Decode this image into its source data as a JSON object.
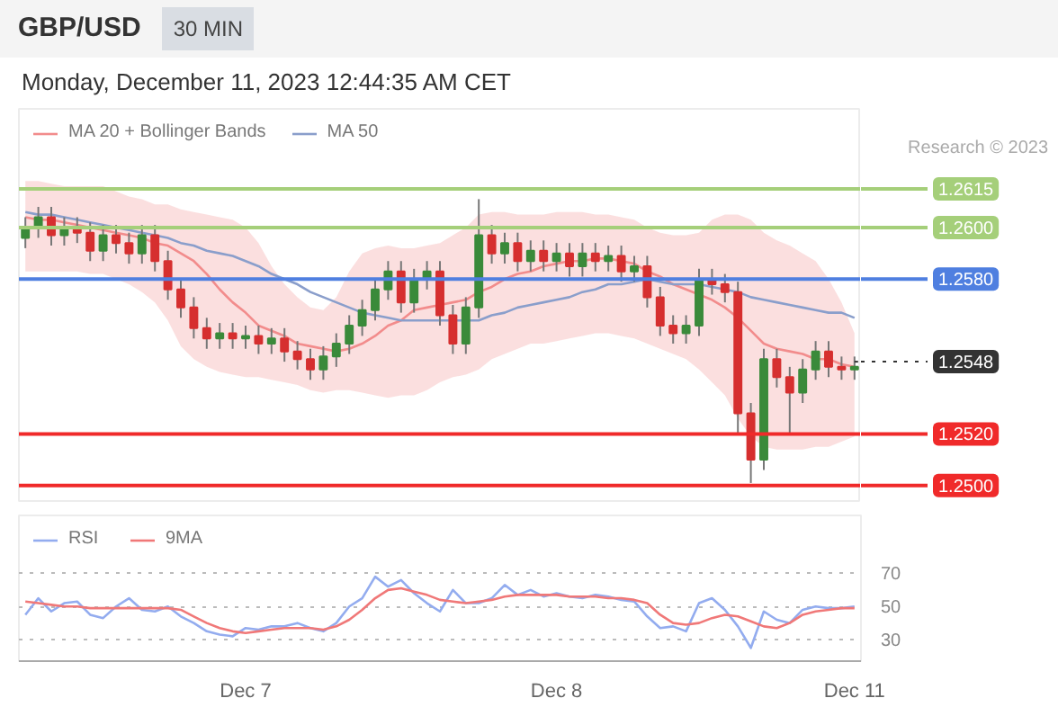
{
  "chart_data": [
    {
      "type": "candlestick",
      "title": "GBP/USD",
      "subtitle": "30 MIN",
      "annotations": [
        "Monday, December 11, 2023 12:44:35 AM CET",
        "Research © 2023"
      ],
      "categories": [
        null,
        null,
        null,
        null,
        null,
        null,
        null,
        null,
        null,
        null,
        null,
        null,
        null,
        null,
        null,
        null,
        null,
        null,
        null,
        null,
        null,
        null,
        null,
        null,
        null,
        null,
        null,
        null,
        null,
        null,
        null,
        null,
        null,
        null,
        null,
        null,
        null,
        null,
        null,
        null,
        null,
        null,
        null,
        null,
        null,
        null,
        null,
        null,
        null,
        null,
        null,
        null,
        null,
        null,
        null,
        null,
        null,
        null,
        null,
        null,
        null,
        null,
        null,
        null,
        null
      ],
      "ohlc": [
        [
          1.2596,
          1.2604,
          1.2592,
          1.26
        ],
        [
          1.26,
          1.2608,
          1.2596,
          1.2604
        ],
        [
          1.2604,
          1.2608,
          1.2593,
          1.2597
        ],
        [
          1.2597,
          1.2604,
          1.2593,
          1.26
        ],
        [
          1.26,
          1.2604,
          1.2594,
          1.2598
        ],
        [
          1.2598,
          1.2602,
          1.2587,
          1.2591
        ],
        [
          1.2591,
          1.2601,
          1.2587,
          1.2597
        ],
        [
          1.2597,
          1.2601,
          1.259,
          1.2594
        ],
        [
          1.2594,
          1.2598,
          1.2586,
          1.259
        ],
        [
          1.259,
          1.2601,
          1.2586,
          1.2597
        ],
        [
          1.2597,
          1.2601,
          1.2583,
          1.2587
        ],
        [
          1.2587,
          1.2591,
          1.2572,
          1.2576
        ],
        [
          1.2576,
          1.258,
          1.2565,
          1.2569
        ],
        [
          1.2569,
          1.2573,
          1.2557,
          1.2561
        ],
        [
          1.2561,
          1.2565,
          1.2553,
          1.2557
        ],
        [
          1.2557,
          1.2563,
          1.2553,
          1.2559
        ],
        [
          1.2559,
          1.2563,
          1.2553,
          1.2557
        ],
        [
          1.2557,
          1.2562,
          1.2553,
          1.2558
        ],
        [
          1.2558,
          1.2562,
          1.2551,
          1.2555
        ],
        [
          1.2555,
          1.2561,
          1.2551,
          1.2557
        ],
        [
          1.2557,
          1.2561,
          1.2548,
          1.2552
        ],
        [
          1.2552,
          1.2556,
          1.2545,
          1.2549
        ],
        [
          1.2549,
          1.2553,
          1.2541,
          1.2545
        ],
        [
          1.2545,
          1.2554,
          1.2541,
          1.255
        ],
        [
          1.255,
          1.2559,
          1.2546,
          1.2555
        ],
        [
          1.2555,
          1.2566,
          1.2551,
          1.2562
        ],
        [
          1.2562,
          1.2572,
          1.2558,
          1.2568
        ],
        [
          1.2568,
          1.258,
          1.2564,
          1.2576
        ],
        [
          1.2576,
          1.2587,
          1.2572,
          1.2583
        ],
        [
          1.2583,
          1.2587,
          1.2567,
          1.2571
        ],
        [
          1.2571,
          1.2584,
          1.2567,
          1.258
        ],
        [
          1.258,
          1.2587,
          1.2576,
          1.2583
        ],
        [
          1.2583,
          1.2587,
          1.2562,
          1.2566
        ],
        [
          1.2566,
          1.257,
          1.2551,
          1.2555
        ],
        [
          1.2555,
          1.2573,
          1.2551,
          1.2569
        ],
        [
          1.2569,
          1.2611,
          1.2565,
          1.2597
        ],
        [
          1.2597,
          1.2601,
          1.2586,
          1.259
        ],
        [
          1.259,
          1.2598,
          1.2586,
          1.2594
        ],
        [
          1.2594,
          1.2598,
          1.2583,
          1.2587
        ],
        [
          1.2587,
          1.2595,
          1.2583,
          1.2591
        ],
        [
          1.2591,
          1.2595,
          1.2583,
          1.2587
        ],
        [
          1.2587,
          1.2594,
          1.2583,
          1.259
        ],
        [
          1.259,
          1.2594,
          1.2581,
          1.2585
        ],
        [
          1.2585,
          1.2594,
          1.2581,
          1.259
        ],
        [
          1.259,
          1.2594,
          1.2583,
          1.2587
        ],
        [
          1.2587,
          1.2593,
          1.2583,
          1.2589
        ],
        [
          1.2589,
          1.2593,
          1.2579,
          1.2583
        ],
        [
          1.2583,
          1.2589,
          1.2579,
          1.2585
        ],
        [
          1.2585,
          1.2589,
          1.2569,
          1.2573
        ],
        [
          1.2573,
          1.2577,
          1.2558,
          1.2562
        ],
        [
          1.2562,
          1.2566,
          1.2555,
          1.2559
        ],
        [
          1.2559,
          1.2566,
          1.2555,
          1.2562
        ],
        [
          1.2562,
          1.2584,
          1.2558,
          1.258
        ],
        [
          1.258,
          1.2584,
          1.2574,
          1.2578
        ],
        [
          1.2578,
          1.2582,
          1.2571,
          1.2575
        ],
        [
          1.2575,
          1.2579,
          1.252,
          1.2528
        ],
        [
          1.2528,
          1.2532,
          1.2501,
          1.251
        ],
        [
          1.251,
          1.2553,
          1.2506,
          1.2549
        ],
        [
          1.2549,
          1.2553,
          1.2538,
          1.2542
        ],
        [
          1.2542,
          1.2546,
          1.252,
          1.2536
        ],
        [
          1.2536,
          1.2549,
          1.2532,
          1.2545
        ],
        [
          1.2545,
          1.2556,
          1.2541,
          1.2552
        ],
        [
          1.2552,
          1.2556,
          1.2542,
          1.2546
        ],
        [
          1.2546,
          1.255,
          1.2541,
          1.2545
        ],
        [
          1.2545,
          1.255,
          1.2541,
          1.2546
        ]
      ],
      "colors": [
        "#3a8a3a",
        "#3a8a3a",
        "#d62f2f",
        "#3a8a3a",
        "#d62f2f",
        "#d62f2f",
        "#3a8a3a",
        "#d62f2f",
        "#d62f2f",
        "#3a8a3a",
        "#d62f2f",
        "#d62f2f",
        "#d62f2f",
        "#d62f2f",
        "#d62f2f",
        "#3a8a3a",
        "#d62f2f",
        "#3a8a3a",
        "#d62f2f",
        "#3a8a3a",
        "#d62f2f",
        "#d62f2f",
        "#d62f2f",
        "#3a8a3a",
        "#3a8a3a",
        "#3a8a3a",
        "#3a8a3a",
        "#3a8a3a",
        "#3a8a3a",
        "#d62f2f",
        "#3a8a3a",
        "#3a8a3a",
        "#d62f2f",
        "#d62f2f",
        "#3a8a3a",
        "#3a8a3a",
        "#d62f2f",
        "#3a8a3a",
        "#d62f2f",
        "#3a8a3a",
        "#d62f2f",
        "#3a8a3a",
        "#d62f2f",
        "#3a8a3a",
        "#d62f2f",
        "#3a8a3a",
        "#d62f2f",
        "#3a8a3a",
        "#d62f2f",
        "#d62f2f",
        "#d62f2f",
        "#3a8a3a",
        "#3a8a3a",
        "#d62f2f",
        "#d62f2f",
        "#d62f2f",
        "#d62f2f",
        "#3a8a3a",
        "#d62f2f",
        "#d62f2f",
        "#3a8a3a",
        "#3a8a3a",
        "#d62f2f",
        "#d62f2f",
        "#3a8a3a"
      ],
      "series": [
        {
          "name": "MA 20 + Bollinger Bands",
          "type": "line",
          "color": "#f28c8c",
          "values": [
            1.2604,
            1.2603,
            1.2603,
            1.2602,
            1.2601,
            1.26,
            1.2599,
            1.2598,
            1.2597,
            1.2596,
            1.2594,
            1.2593,
            1.259,
            1.2587,
            1.2582,
            1.2576,
            1.2571,
            1.2567,
            1.2562,
            1.256,
            1.2558,
            1.2555,
            1.2554,
            1.2553,
            1.2552,
            1.2553,
            1.2555,
            1.2558,
            1.2562,
            1.2564,
            1.2568,
            1.2569,
            1.257,
            1.2571,
            1.2572,
            1.2575,
            1.2577,
            1.258,
            1.2582,
            1.2583,
            1.2585,
            1.2586,
            1.2587,
            1.2587,
            1.2588,
            1.2588,
            1.2587,
            1.2586,
            1.2583,
            1.2581,
            1.2578,
            1.2576,
            1.2574,
            1.2572,
            1.2569,
            1.2565,
            1.256,
            1.2555,
            1.2553,
            1.2552,
            1.2551,
            1.2549,
            1.2549,
            1.2547,
            1.2546
          ],
          "upper": [
            1.2618,
            1.2618,
            1.2617,
            1.2616,
            1.2616,
            1.2616,
            1.2616,
            1.2614,
            1.2612,
            1.2611,
            1.2609,
            1.2609,
            1.2607,
            1.2606,
            1.2605,
            1.2604,
            1.2603,
            1.26,
            1.2594,
            1.2585,
            1.2578,
            1.2573,
            1.2569,
            1.2568,
            1.2573,
            1.2583,
            1.259,
            1.2592,
            1.2593,
            1.2592,
            1.2592,
            1.2593,
            1.2594,
            1.2597,
            1.26,
            1.2605,
            1.2606,
            1.2606,
            1.2605,
            1.2605,
            1.2605,
            1.2606,
            1.2606,
            1.2606,
            1.2605,
            1.2605,
            1.2604,
            1.2603,
            1.26,
            1.2598,
            1.2597,
            1.2597,
            1.2598,
            1.2603,
            1.2605,
            1.2605,
            1.2603,
            1.2598,
            1.2595,
            1.2593,
            1.259,
            1.2587,
            1.258,
            1.2571,
            1.2559
          ],
          "lower": [
            1.2583,
            1.2583,
            1.2583,
            1.2583,
            1.2583,
            1.2582,
            1.2582,
            1.258,
            1.2578,
            1.2575,
            1.2571,
            1.2564,
            1.2554,
            1.2549,
            1.2546,
            1.2544,
            1.2543,
            1.2542,
            1.2542,
            1.2541,
            1.254,
            1.2539,
            1.2537,
            1.2536,
            1.2537,
            1.2537,
            1.2536,
            1.2535,
            1.2534,
            1.2535,
            1.2535,
            1.2537,
            1.254,
            1.2542,
            1.2543,
            1.2545,
            1.2549,
            1.2551,
            1.2553,
            1.2555,
            1.2555,
            1.2556,
            1.2557,
            1.2558,
            1.2559,
            1.2559,
            1.2558,
            1.2557,
            1.2555,
            1.2553,
            1.2551,
            1.2549,
            1.2545,
            1.254,
            1.2535,
            1.2526,
            1.2519,
            1.2515,
            1.2514,
            1.2514,
            1.2514,
            1.2515,
            1.2515,
            1.2517,
            1.2519
          ]
        },
        {
          "name": "MA 50",
          "type": "line",
          "color": "#8a9ecb",
          "values": [
            1.2606,
            1.2605,
            1.2605,
            1.2604,
            1.2603,
            1.2602,
            1.2601,
            1.26,
            1.2599,
            1.2598,
            1.2597,
            1.2596,
            1.2594,
            1.2593,
            1.2591,
            1.259,
            1.2589,
            1.2587,
            1.2585,
            1.2582,
            1.258,
            1.2578,
            1.2575,
            1.2573,
            1.2571,
            1.2569,
            1.2567,
            1.2566,
            1.2565,
            1.2564,
            1.2564,
            1.2564,
            1.2564,
            1.2564,
            1.2564,
            1.2564,
            1.2566,
            1.2567,
            1.2569,
            1.257,
            1.2571,
            1.2572,
            1.2573,
            1.2575,
            1.2576,
            1.2578,
            1.2578,
            1.2579,
            1.258,
            1.2579,
            1.2578,
            1.2578,
            1.2578,
            1.2577,
            1.2576,
            1.2575,
            1.2573,
            1.2572,
            1.2571,
            1.257,
            1.2569,
            1.2568,
            1.2567,
            1.2567,
            1.2565
          ]
        }
      ],
      "ref_lines": [
        {
          "axis": "y",
          "value": 1.2615,
          "label": "1.2615",
          "color": "#a5cf7a"
        },
        {
          "axis": "y",
          "value": 1.26,
          "label": "1.2600",
          "color": "#a5cf7a"
        },
        {
          "axis": "y",
          "value": 1.258,
          "label": "1.2580",
          "color": "#4f7fe0"
        },
        {
          "axis": "y",
          "value": 1.2548,
          "label": "1.2548",
          "color": "#333333",
          "line_style": "dotted"
        },
        {
          "axis": "y",
          "value": 1.252,
          "label": "1.2520",
          "color": "#f02a2a"
        },
        {
          "axis": "y",
          "value": 1.25,
          "label": "1.2500",
          "color": "#f02a2a"
        }
      ],
      "ylim": [
        1.2494,
        1.2646
      ],
      "tick_labels": false,
      "legend": "top left"
    },
    {
      "type": "line",
      "categories": [
        null,
        null,
        null,
        null,
        null,
        null,
        null,
        null,
        null,
        null,
        null,
        null,
        null,
        null,
        null,
        null,
        null,
        "Dec 7",
        null,
        null,
        null,
        null,
        null,
        null,
        null,
        null,
        null,
        null,
        null,
        null,
        null,
        null,
        null,
        null,
        null,
        null,
        null,
        null,
        null,
        null,
        null,
        "Dec 8",
        null,
        null,
        null,
        null,
        null,
        null,
        null,
        null,
        null,
        null,
        null,
        null,
        null,
        null,
        null,
        null,
        null,
        null,
        null,
        null,
        null,
        null,
        "Dec 11"
      ],
      "series": [
        {
          "name": "RSI",
          "color": "#93acef",
          "values": [
            45,
            55,
            47,
            52,
            53,
            45,
            43,
            50,
            55,
            48,
            47,
            50,
            44,
            40,
            35,
            33,
            32,
            37,
            36,
            38,
            38,
            40,
            37,
            35,
            40,
            50,
            55,
            68,
            62,
            66,
            58,
            52,
            47,
            60,
            52,
            52,
            55,
            63,
            57,
            60,
            56,
            58,
            56,
            55,
            57,
            56,
            54,
            53,
            44,
            37,
            38,
            35,
            52,
            55,
            48,
            38,
            25,
            47,
            42,
            40,
            48,
            50,
            49,
            49,
            50
          ]
        },
        {
          "name": "9MA",
          "color": "#f07878",
          "values": [
            53,
            52,
            51,
            50,
            50,
            49,
            49,
            49,
            49,
            49,
            49,
            49,
            48,
            44,
            40,
            37,
            35,
            34,
            35,
            36,
            37,
            37,
            37,
            36,
            38,
            42,
            48,
            55,
            60,
            61,
            59,
            57,
            54,
            53,
            52,
            53,
            54,
            56,
            57,
            57,
            57,
            57,
            56,
            56,
            56,
            55,
            55,
            54,
            52,
            45,
            40,
            39,
            40,
            43,
            45,
            44,
            41,
            38,
            37,
            40,
            45,
            47,
            48,
            49,
            49
          ]
        }
      ],
      "ylim": [
        17,
        105
      ],
      "yticks": [
        30,
        50,
        70
      ],
      "grid": "y",
      "legend": "top left"
    }
  ]
}
